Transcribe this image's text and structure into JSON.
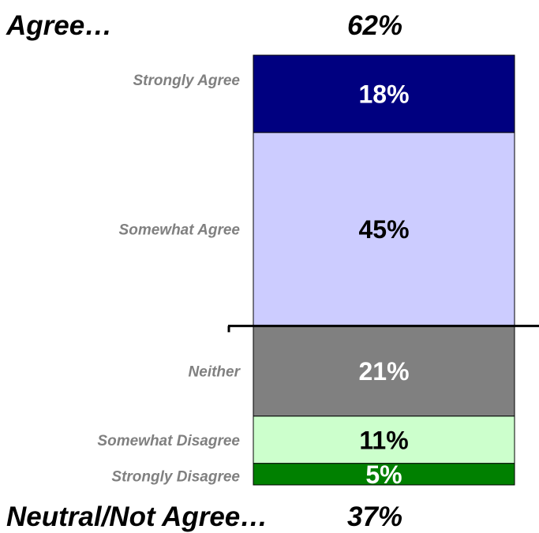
{
  "chart_data": {
    "type": "bar",
    "stacked": true,
    "categories": [
      "Strongly Agree",
      "Somewhat Agree",
      "Neither",
      "Somewhat Disagree",
      "Strongly Disagree"
    ],
    "values": [
      18,
      45,
      21,
      11,
      5
    ],
    "value_labels": [
      "18%",
      "45%",
      "21%",
      "11%",
      "5%"
    ],
    "colors": [
      "#000080",
      "#ccccff",
      "#808080",
      "#ccffcc",
      "#008000"
    ],
    "label_colors": [
      "#ffffff",
      "#000000",
      "#ffffff",
      "#000000",
      "#ffffff"
    ],
    "groups": {
      "top": {
        "label": "Agree…",
        "value": "62%"
      },
      "bottom": {
        "label": "Neutral/Not Agree…",
        "value": "37%"
      }
    },
    "divider_after_category": "Somewhat Agree"
  }
}
